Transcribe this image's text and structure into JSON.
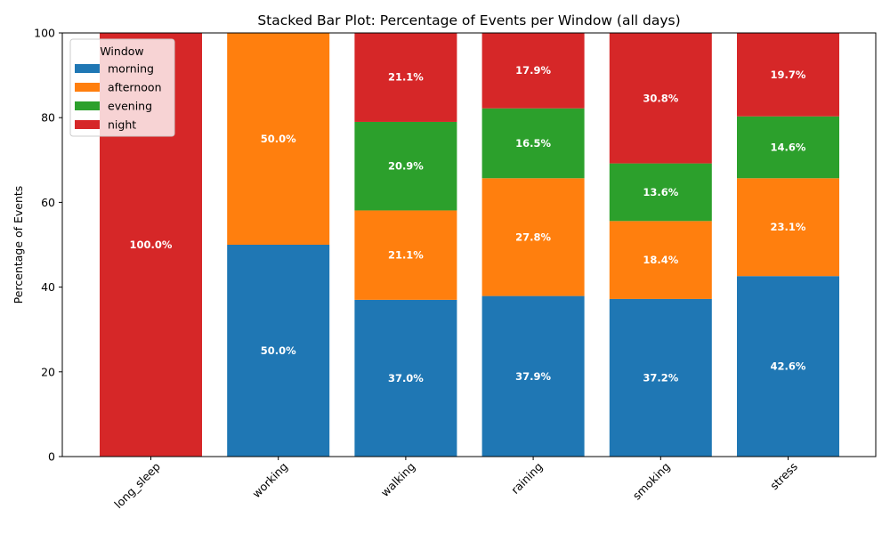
{
  "chart_data": {
    "type": "bar",
    "stacked": true,
    "title": "Stacked Bar Plot: Percentage of Events per Window (all days)",
    "xlabel": "",
    "ylabel": "Percentage of Events",
    "ylim": [
      0,
      100
    ],
    "yticks": [
      0,
      20,
      40,
      60,
      80,
      100
    ],
    "categories": [
      "long_sleep",
      "working",
      "walking",
      "raining",
      "smoking",
      "stress"
    ],
    "series": [
      {
        "name": "morning",
        "color": "#1f77b4",
        "values": [
          0,
          50.0,
          37.0,
          37.9,
          37.2,
          42.6
        ]
      },
      {
        "name": "afternoon",
        "color": "#ff7f0e",
        "values": [
          0,
          50.0,
          21.1,
          27.8,
          18.4,
          23.1
        ]
      },
      {
        "name": "evening",
        "color": "#2ca02c",
        "values": [
          0,
          0,
          20.9,
          16.5,
          13.6,
          14.6
        ]
      },
      {
        "name": "night",
        "color": "#d62728",
        "values": [
          100.0,
          0,
          21.1,
          17.9,
          30.8,
          19.7
        ]
      }
    ],
    "legend": {
      "title": "Window",
      "placement": "top-left"
    },
    "grid": false,
    "value_label_suffix": "%"
  }
}
